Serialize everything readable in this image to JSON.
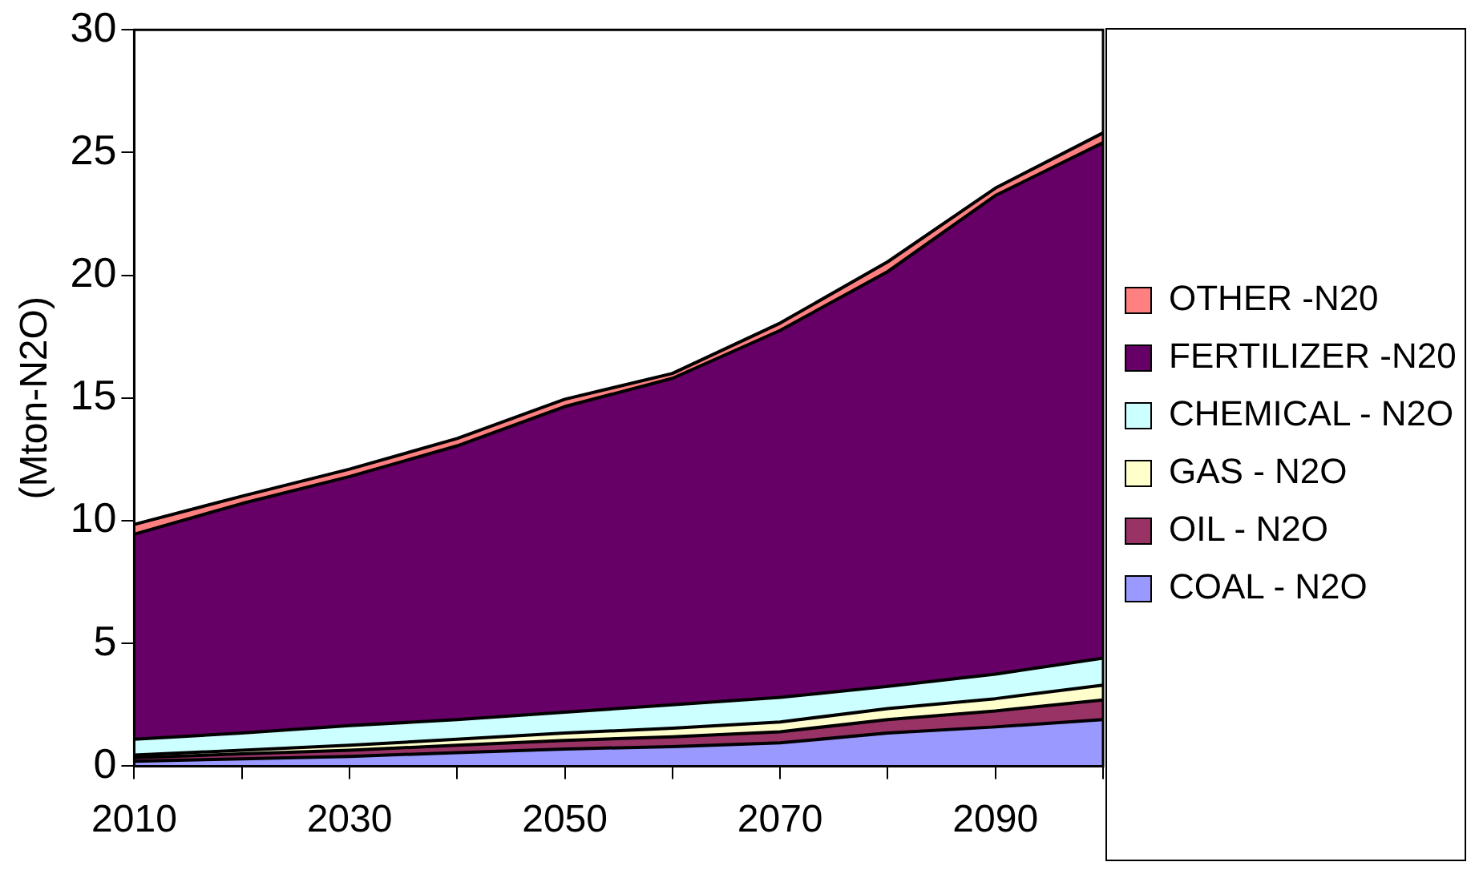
{
  "chart_data": {
    "type": "area",
    "stacked": true,
    "ylabel": "(Mton-N2O)",
    "categories": [
      "2010",
      null,
      "2030",
      null,
      "2050",
      null,
      "2070",
      null,
      "2090",
      null
    ],
    "ylim": [
      0,
      30
    ],
    "yticks": [
      0,
      5,
      10,
      15,
      20,
      25,
      30
    ],
    "grid": false,
    "legend": "right",
    "marker": "none",
    "series": [
      {
        "name": "COAL - N2O",
        "color": "#9999ff",
        "values": [
          0.2,
          0.3,
          0.4,
          0.55,
          0.7,
          0.8,
          0.95,
          1.35,
          1.6,
          1.9
        ]
      },
      {
        "name": "OIL - N2O",
        "color": "#993366",
        "values": [
          0.15,
          0.2,
          0.25,
          0.3,
          0.35,
          0.4,
          0.45,
          0.55,
          0.65,
          0.8
        ]
      },
      {
        "name": "GAS - N2O",
        "color": "#ffffcc",
        "values": [
          0.1,
          0.15,
          0.2,
          0.25,
          0.3,
          0.35,
          0.4,
          0.45,
          0.5,
          0.6
        ]
      },
      {
        "name": "CHEMICAL - N2O",
        "color": "#ccffff",
        "values": [
          0.65,
          0.7,
          0.8,
          0.8,
          0.85,
          0.95,
          1.0,
          0.9,
          1.0,
          1.1
        ]
      },
      {
        "name": "FERTILIZER -N20",
        "color": "#660066",
        "values": [
          8.35,
          9.35,
          10.15,
          11.15,
          12.45,
          13.3,
          14.95,
          16.9,
          19.5,
          21.0
        ]
      },
      {
        "name": "OTHER -N20",
        "color": "#ff8080",
        "values": [
          0.4,
          0.3,
          0.3,
          0.3,
          0.3,
          0.2,
          0.3,
          0.4,
          0.3,
          0.4
        ]
      }
    ]
  }
}
